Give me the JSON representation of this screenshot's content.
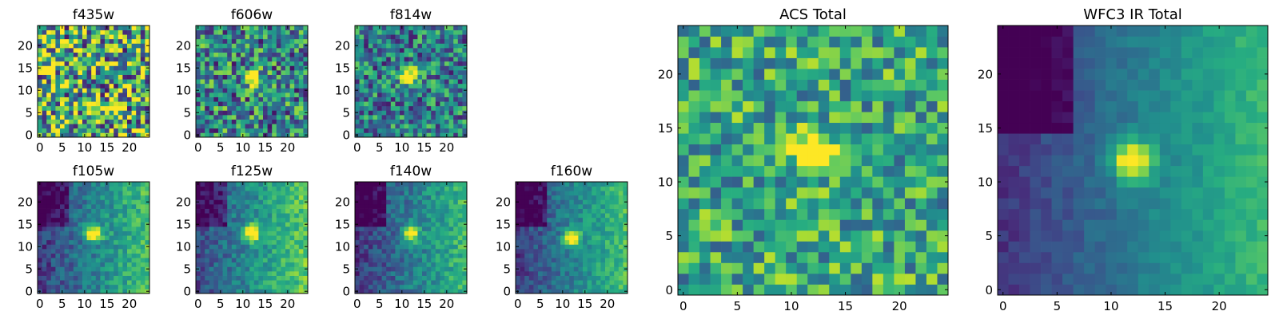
{
  "chart_data": [
    {
      "type": "heatmap",
      "title": "f435w",
      "colormap": "viridis",
      "grid_size": [
        25,
        25
      ],
      "x_ticks": [
        "0",
        "5",
        "10",
        "15",
        "20"
      ],
      "y_ticks": [
        "0",
        "5",
        "10",
        "15",
        "20"
      ],
      "xlim": [
        -0.5,
        24.5
      ],
      "ylim": [
        -0.5,
        24.5
      ],
      "source_peak": null,
      "gradient": "none",
      "noise": 0.55,
      "background": 0.62
    },
    {
      "type": "heatmap",
      "title": "f606w",
      "colormap": "viridis",
      "grid_size": [
        25,
        25
      ],
      "x_ticks": [
        "0",
        "5",
        "10",
        "15",
        "20"
      ],
      "y_ticks": [
        "0",
        "5",
        "10",
        "15",
        "20"
      ],
      "xlim": [
        -0.5,
        24.5
      ],
      "ylim": [
        -0.5,
        24.5
      ],
      "source_peak": [
        12,
        13
      ],
      "gradient": "none",
      "noise": 0.4,
      "background": 0.45
    },
    {
      "type": "heatmap",
      "title": "f814w",
      "colormap": "viridis",
      "grid_size": [
        25,
        25
      ],
      "x_ticks": [
        "0",
        "5",
        "10",
        "15",
        "20"
      ],
      "y_ticks": [
        "0",
        "5",
        "10",
        "15",
        "20"
      ],
      "xlim": [
        -0.5,
        24.5
      ],
      "ylim": [
        -0.5,
        24.5
      ],
      "source_peak": [
        12,
        13
      ],
      "gradient": "none",
      "noise": 0.35,
      "background": 0.42
    },
    {
      "type": "heatmap",
      "title": "f105w",
      "colormap": "viridis",
      "grid_size": [
        25,
        25
      ],
      "x_ticks": [
        "0",
        "5",
        "10",
        "15",
        "20"
      ],
      "y_ticks": [
        "0",
        "5",
        "10",
        "15",
        "20"
      ],
      "xlim": [
        -0.5,
        24.5
      ],
      "ylim": [
        -0.5,
        24.5
      ],
      "source_peak": [
        12,
        13
      ],
      "gradient": "left-dark",
      "noise": 0.14,
      "background": 0.45
    },
    {
      "type": "heatmap",
      "title": "f125w",
      "colormap": "viridis",
      "grid_size": [
        25,
        25
      ],
      "x_ticks": [
        "0",
        "5",
        "10",
        "15",
        "20"
      ],
      "y_ticks": [
        "0",
        "5",
        "10",
        "15",
        "20"
      ],
      "xlim": [
        -0.5,
        24.5
      ],
      "ylim": [
        -0.5,
        24.5
      ],
      "source_peak": [
        12,
        13
      ],
      "gradient": "left-dark",
      "noise": 0.14,
      "background": 0.5
    },
    {
      "type": "heatmap",
      "title": "f140w",
      "colormap": "viridis",
      "grid_size": [
        25,
        25
      ],
      "x_ticks": [
        "0",
        "5",
        "10",
        "15",
        "20"
      ],
      "y_ticks": [
        "0",
        "5",
        "10",
        "15",
        "20"
      ],
      "xlim": [
        -0.5,
        24.5
      ],
      "ylim": [
        -0.5,
        24.5
      ],
      "source_peak": [
        12,
        13
      ],
      "gradient": "left-dark",
      "noise": 0.14,
      "background": 0.42
    },
    {
      "type": "heatmap",
      "title": "f160w",
      "colormap": "viridis",
      "grid_size": [
        25,
        25
      ],
      "x_ticks": [
        "0",
        "5",
        "10",
        "15",
        "20"
      ],
      "y_ticks": [
        "0",
        "5",
        "10",
        "15",
        "20"
      ],
      "xlim": [
        -0.5,
        24.5
      ],
      "ylim": [
        -0.5,
        24.5
      ],
      "source_peak": [
        12,
        12
      ],
      "gradient": "left-dark",
      "noise": 0.12,
      "background": 0.45
    },
    {
      "type": "heatmap",
      "title": "ACS Total",
      "colormap": "viridis",
      "grid_size": [
        25,
        25
      ],
      "x_ticks": [
        "0",
        "5",
        "10",
        "15",
        "20"
      ],
      "y_ticks": [
        "0",
        "5",
        "10",
        "15",
        "20"
      ],
      "xlim": [
        -0.5,
        24.5
      ],
      "ylim": [
        -0.5,
        24.5
      ],
      "source_peak": [
        12,
        13
      ],
      "gradient": "none",
      "noise": 0.3,
      "background": 0.6
    },
    {
      "type": "heatmap",
      "title": "WFC3 IR Total",
      "colormap": "viridis",
      "grid_size": [
        25,
        25
      ],
      "x_ticks": [
        "0",
        "5",
        "10",
        "15",
        "20"
      ],
      "y_ticks": [
        "0",
        "5",
        "10",
        "15",
        "20"
      ],
      "xlim": [
        -0.5,
        24.5
      ],
      "ylim": [
        -0.5,
        24.5
      ],
      "source_peak": [
        12,
        12
      ],
      "gradient": "left-dark",
      "noise": 0.06,
      "background": 0.42
    }
  ]
}
